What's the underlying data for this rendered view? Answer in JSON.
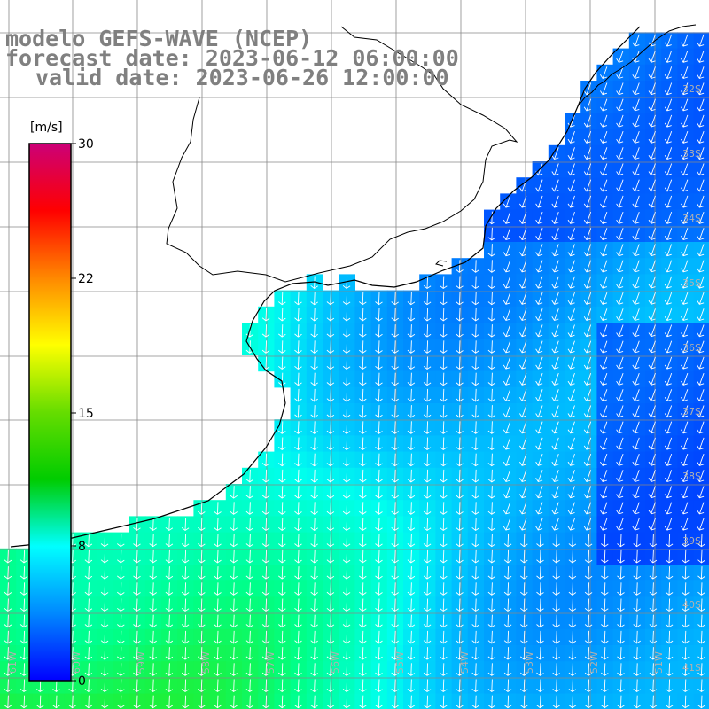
{
  "header": {
    "line1": "modelo GEFS-WAVE (NCEP)",
    "line2": "forecast date: 2023-06-12 06:00:00",
    "line3": "valid date: 2023-06-26 12:00:00"
  },
  "colorbar": {
    "unit": "[m/s]",
    "ticks": [
      "30",
      "22",
      "15",
      "8",
      "0"
    ],
    "colors": [
      "#cc0077",
      "#ff0000",
      "#ff8800",
      "#ffff00",
      "#66dd00",
      "#00cc00",
      "#00ffff",
      "#0088ff",
      "#0000ff"
    ]
  },
  "map": {
    "land_color": "#ffffff",
    "grid_color": "#888888",
    "coast_color": "#000000",
    "arrow_color": "#ffffff",
    "lat_labels": [
      "32S",
      "33S",
      "34S",
      "35S",
      "36S",
      "37S",
      "38S",
      "39S",
      "40S",
      "41S"
    ],
    "lon_labels": [
      "61W",
      "60W",
      "59W",
      "58W",
      "57W",
      "56W",
      "55W",
      "54W",
      "53W",
      "52W",
      "51W"
    ]
  }
}
